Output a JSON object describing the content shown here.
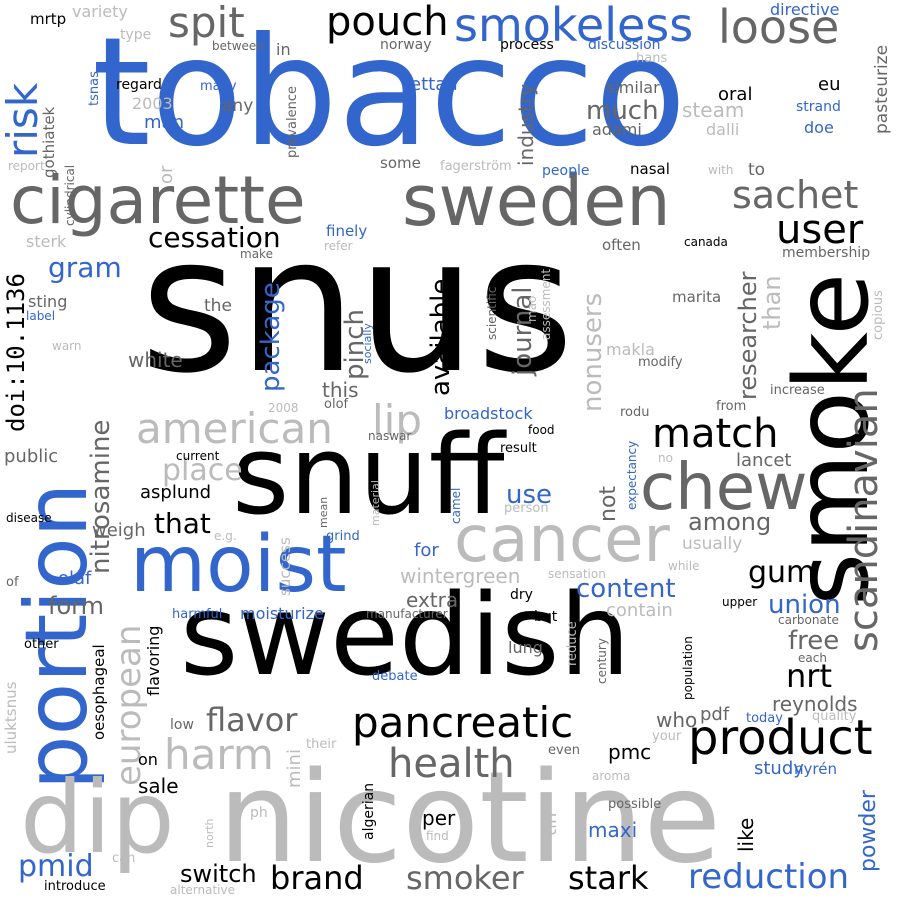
{
  "palette": {
    "black": "#000000",
    "dark_gray": "#666666",
    "light_gray": "#bbbbbb",
    "blue": "#3366cc",
    "background": "#ffffff"
  },
  "words": [
    {
      "text": "snus",
      "color": "black"
    },
    {
      "text": "tobacco",
      "color": "blue"
    },
    {
      "text": "nicotine",
      "color": "light_gray"
    },
    {
      "text": "swedish",
      "color": "black"
    },
    {
      "text": "snuff",
      "color": "black"
    },
    {
      "text": "smoke",
      "color": "black"
    },
    {
      "text": "portion",
      "color": "blue"
    },
    {
      "text": "cigarette",
      "color": "dark_gray"
    },
    {
      "text": "sweden",
      "color": "dark_gray"
    },
    {
      "text": "moist",
      "color": "blue"
    },
    {
      "text": "dip",
      "color": "light_gray"
    },
    {
      "text": "cancer",
      "color": "light_gray"
    },
    {
      "text": "chew",
      "color": "dark_gray"
    },
    {
      "text": "product",
      "color": "black"
    },
    {
      "text": "pancreatic",
      "color": "black"
    },
    {
      "text": "scandinavian",
      "color": "dark_gray"
    },
    {
      "text": "smokeless",
      "color": "blue"
    },
    {
      "text": "pouch",
      "color": "black"
    },
    {
      "text": "loose",
      "color": "dark_gray"
    },
    {
      "text": "spit",
      "color": "dark_gray"
    },
    {
      "text": "risk",
      "color": "blue"
    },
    {
      "text": "american",
      "color": "light_gray"
    },
    {
      "text": "health",
      "color": "dark_gray"
    },
    {
      "text": "match",
      "color": "black"
    },
    {
      "text": "harm",
      "color": "light_gray"
    },
    {
      "text": "lip",
      "color": "light_gray"
    },
    {
      "text": "sachet",
      "color": "dark_gray"
    },
    {
      "text": "user",
      "color": "black"
    },
    {
      "text": "cessation",
      "color": "black"
    },
    {
      "text": "european",
      "color": "light_gray"
    },
    {
      "text": "reduction",
      "color": "blue"
    },
    {
      "text": "brand",
      "color": "black"
    },
    {
      "text": "stark",
      "color": "black"
    },
    {
      "text": "smoker",
      "color": "dark_gray"
    },
    {
      "text": "switch",
      "color": "black"
    },
    {
      "text": "flavor",
      "color": "dark_gray"
    },
    {
      "text": "nitrosamine",
      "color": "dark_gray"
    },
    {
      "text": "doi:10.1136",
      "color": "black"
    },
    {
      "text": "package",
      "color": "blue"
    },
    {
      "text": "place",
      "color": "light_gray"
    },
    {
      "text": "pmid",
      "color": "blue"
    },
    {
      "text": "gum",
      "color": "black"
    },
    {
      "text": "nrt",
      "color": "black"
    },
    {
      "text": "union",
      "color": "blue"
    },
    {
      "text": "free",
      "color": "dark_gray"
    },
    {
      "text": "content",
      "color": "blue"
    },
    {
      "text": "journal",
      "color": "dark_gray"
    },
    {
      "text": "researcher",
      "color": "dark_gray"
    },
    {
      "text": "nonusers",
      "color": "light_gray"
    },
    {
      "text": "available",
      "color": "black"
    },
    {
      "text": "pinch",
      "color": "dark_gray"
    },
    {
      "text": "among",
      "color": "dark_gray"
    },
    {
      "text": "that",
      "color": "black"
    },
    {
      "text": "use",
      "color": "blue"
    },
    {
      "text": "form",
      "color": "dark_gray"
    },
    {
      "text": "gram",
      "color": "blue"
    },
    {
      "text": "powder",
      "color": "blue"
    },
    {
      "text": "much",
      "color": "dark_gray"
    },
    {
      "text": "industry",
      "color": "dark_gray"
    },
    {
      "text": "pmc",
      "color": "black"
    },
    {
      "text": "maxi",
      "color": "blue"
    },
    {
      "text": "white",
      "color": "dark_gray"
    },
    {
      "text": "wintergreen",
      "color": "light_gray"
    },
    {
      "text": "extra",
      "color": "dark_gray"
    },
    {
      "text": "olaf",
      "color": "blue"
    },
    {
      "text": "sale",
      "color": "black"
    },
    {
      "text": "study",
      "color": "blue"
    },
    {
      "text": "reynolds",
      "color": "dark_gray"
    },
    {
      "text": "not",
      "color": "dark_gray"
    },
    {
      "text": "than",
      "color": "light_gray"
    },
    {
      "text": "mini",
      "color": "light_gray"
    },
    {
      "text": "lancet",
      "color": "dark_gray"
    },
    {
      "text": "per",
      "color": "black"
    },
    {
      "text": "like",
      "color": "black"
    },
    {
      "text": "who",
      "color": "dark_gray"
    },
    {
      "text": "pdf",
      "color": "dark_gray"
    },
    {
      "text": "contain",
      "color": "light_gray"
    },
    {
      "text": "weigh",
      "color": "dark_gray"
    },
    {
      "text": "this",
      "color": "dark_gray"
    },
    {
      "text": "asplund",
      "color": "black"
    },
    {
      "text": "public",
      "color": "dark_gray"
    },
    {
      "text": "ettan",
      "color": "blue"
    },
    {
      "text": "man",
      "color": "blue"
    },
    {
      "text": "flavoring",
      "color": "black"
    },
    {
      "text": "oesophageal",
      "color": "black"
    },
    {
      "text": "usually",
      "color": "light_gray"
    },
    {
      "text": "for",
      "color": "blue"
    },
    {
      "text": "moisturize",
      "color": "blue"
    },
    {
      "text": "tin",
      "color": "light_gray"
    },
    {
      "text": "oral",
      "color": "black"
    },
    {
      "text": "steam",
      "color": "light_gray"
    },
    {
      "text": "dalli",
      "color": "light_gray"
    },
    {
      "text": "adami",
      "color": "dark_gray"
    },
    {
      "text": "similar",
      "color": "dark_gray"
    },
    {
      "text": "eu",
      "color": "black"
    },
    {
      "text": "strand",
      "color": "blue"
    },
    {
      "text": "doe",
      "color": "blue"
    },
    {
      "text": "pasteurize",
      "color": "dark_gray"
    },
    {
      "text": "directive",
      "color": "blue"
    },
    {
      "text": "variety",
      "color": "light_gray"
    },
    {
      "text": "mrtp",
      "color": "black"
    },
    {
      "text": "type",
      "color": "light_gray"
    },
    {
      "text": "between",
      "color": "dark_gray"
    },
    {
      "text": "in",
      "color": "dark_gray"
    },
    {
      "text": "norway",
      "color": "dark_gray"
    },
    {
      "text": "process",
      "color": "black"
    },
    {
      "text": "discussion",
      "color": "blue"
    },
    {
      "text": "hans",
      "color": "light_gray"
    },
    {
      "text": "regard",
      "color": "black"
    },
    {
      "text": "tsnas",
      "color": "blue"
    },
    {
      "text": "many",
      "color": "blue"
    },
    {
      "text": "2003",
      "color": "light_gray"
    },
    {
      "text": "any",
      "color": "dark_gray"
    },
    {
      "text": "gothiatek",
      "color": "dark_gray"
    },
    {
      "text": "prevalence",
      "color": "dark_gray"
    },
    {
      "text": "cylindrical",
      "color": "dark_gray"
    },
    {
      "text": "report",
      "color": "light_gray"
    },
    {
      "text": "or",
      "color": "light_gray"
    },
    {
      "text": "some",
      "color": "dark_gray"
    },
    {
      "text": "fagerström",
      "color": "light_gray"
    },
    {
      "text": "people",
      "color": "blue"
    },
    {
      "text": "with",
      "color": "light_gray"
    },
    {
      "text": "nasal",
      "color": "black"
    },
    {
      "text": "to",
      "color": "dark_gray"
    },
    {
      "text": "canada",
      "color": "black"
    },
    {
      "text": "membership",
      "color": "dark_gray"
    },
    {
      "text": "finely",
      "color": "blue"
    },
    {
      "text": "refer",
      "color": "light_gray"
    },
    {
      "text": "make",
      "color": "dark_gray"
    },
    {
      "text": "sterk",
      "color": "light_gray"
    },
    {
      "text": "sting",
      "color": "dark_gray"
    },
    {
      "text": "label",
      "color": "blue"
    },
    {
      "text": "the",
      "color": "dark_gray"
    },
    {
      "text": "warn",
      "color": "light_gray"
    },
    {
      "text": "socially",
      "color": "blue"
    },
    {
      "text": "scientific",
      "color": "dark_gray"
    },
    {
      "text": "mao",
      "color": "light_gray"
    },
    {
      "text": "assessment",
      "color": "light_gray"
    },
    {
      "text": "often",
      "color": "dark_gray"
    },
    {
      "text": "marita",
      "color": "dark_gray"
    },
    {
      "text": "makla",
      "color": "light_gray"
    },
    {
      "text": "modify",
      "color": "dark_gray"
    },
    {
      "text": "copious",
      "color": "light_gray"
    },
    {
      "text": "increase",
      "color": "dark_gray"
    },
    {
      "text": "from",
      "color": "dark_gray"
    },
    {
      "text": "rodu",
      "color": "dark_gray"
    },
    {
      "text": "2008",
      "color": "light_gray"
    },
    {
      "text": "olof",
      "color": "dark_gray"
    },
    {
      "text": "broadstock",
      "color": "blue"
    },
    {
      "text": "naswar",
      "color": "dark_gray"
    },
    {
      "text": "food",
      "color": "black"
    },
    {
      "text": "result",
      "color": "black"
    },
    {
      "text": "expectancy",
      "color": "blue"
    },
    {
      "text": "no",
      "color": "light_gray"
    },
    {
      "text": "current",
      "color": "black"
    },
    {
      "text": "disease",
      "color": "black"
    },
    {
      "text": "mean",
      "color": "dark_gray"
    },
    {
      "text": "material",
      "color": "light_gray"
    },
    {
      "text": "camel",
      "color": "blue"
    },
    {
      "text": "person",
      "color": "light_gray"
    },
    {
      "text": "grind",
      "color": "blue"
    },
    {
      "text": "e.g.",
      "color": "light_gray"
    },
    {
      "text": "success",
      "color": "light_gray"
    },
    {
      "text": "while",
      "color": "light_gray"
    },
    {
      "text": "sensation",
      "color": "light_gray"
    },
    {
      "text": "of",
      "color": "dark_gray"
    },
    {
      "text": "dry",
      "color": "black"
    },
    {
      "text": "but",
      "color": "black"
    },
    {
      "text": "reduce",
      "color": "light_gray"
    },
    {
      "text": "century",
      "color": "dark_gray"
    },
    {
      "text": "lung",
      "color": "dark_gray"
    },
    {
      "text": "upper",
      "color": "black"
    },
    {
      "text": "carbonate",
      "color": "dark_gray"
    },
    {
      "text": "each",
      "color": "dark_gray"
    },
    {
      "text": "manufacturer",
      "color": "dark_gray"
    },
    {
      "text": "harmful",
      "color": "blue"
    },
    {
      "text": "other",
      "color": "black"
    },
    {
      "text": "debate",
      "color": "blue"
    },
    {
      "text": "population",
      "color": "black"
    },
    {
      "text": "quality",
      "color": "light_gray"
    },
    {
      "text": "today",
      "color": "blue"
    },
    {
      "text": "uluktsnus",
      "color": "light_gray"
    },
    {
      "text": "low",
      "color": "dark_gray"
    },
    {
      "text": "their",
      "color": "light_gray"
    },
    {
      "text": "even",
      "color": "dark_gray"
    },
    {
      "text": "your",
      "color": "light_gray"
    },
    {
      "text": "algerian",
      "color": "black"
    },
    {
      "text": "aroma",
      "color": "light_gray"
    },
    {
      "text": "nyrén",
      "color": "blue"
    },
    {
      "text": "on",
      "color": "black"
    },
    {
      "text": "possible",
      "color": "dark_gray"
    },
    {
      "text": "find",
      "color": "light_gray"
    },
    {
      "text": "north",
      "color": "light_gray"
    },
    {
      "text": "ph",
      "color": "light_gray"
    },
    {
      "text": "can",
      "color": "light_gray"
    },
    {
      "text": "introduce",
      "color": "black"
    },
    {
      "text": "alternative",
      "color": "light_gray"
    }
  ]
}
